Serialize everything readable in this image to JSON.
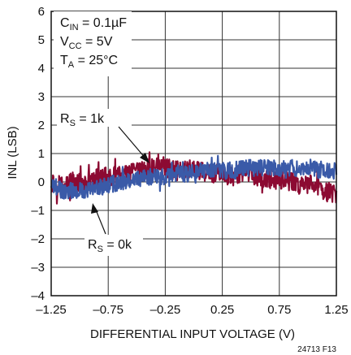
{
  "chart_data": {
    "type": "line",
    "title": "",
    "xlabel": "DIFFERENTIAL INPUT VOLTAGE (V)",
    "ylabel": "INL (LSB)",
    "xlim": [
      -1.25,
      1.25
    ],
    "ylim": [
      -4,
      6
    ],
    "x_ticks": [
      -1.25,
      -0.75,
      -0.25,
      0.25,
      0.75,
      1.25
    ],
    "x_tick_labels": [
      "–1.25",
      "–0.75",
      "–0.25",
      "0.25",
      "0.75",
      "1.25"
    ],
    "y_ticks": [
      -4,
      -3,
      -2,
      -1,
      0,
      1,
      2,
      3,
      4,
      5,
      6
    ],
    "y_tick_labels": [
      "–4",
      "–3",
      "–2",
      "–1",
      "0",
      "1",
      "2",
      "3",
      "4",
      "5",
      "6"
    ],
    "grid": true,
    "conditions": {
      "cin": {
        "main": "C",
        "sub": "IN",
        "rest": " = 0.1µF"
      },
      "vcc": {
        "main": "V",
        "sub": "CC",
        "rest": " = 5V"
      },
      "ta": {
        "main": "T",
        "sub": "A",
        "rest": " = 25°C"
      }
    },
    "annotations": [
      {
        "main": "R",
        "sub": "S",
        "rest": " = 1k",
        "points_to_series": "rs_1k"
      },
      {
        "main": "R",
        "sub": "S",
        "rest": " = 0k",
        "points_to_series": "rs_0k"
      }
    ],
    "figure_id": "24713 F13",
    "colors": {
      "rs_1k": "#8c0a32",
      "rs_0k": "#3a5aa8"
    },
    "series": [
      {
        "id": "rs_1k",
        "x": [
          -1.25,
          -1.15,
          -1.05,
          -0.95,
          -0.85,
          -0.75,
          -0.65,
          -0.55,
          -0.45,
          -0.35,
          -0.3,
          -0.25,
          -0.15,
          -0.05,
          0.05,
          0.15,
          0.25,
          0.35,
          0.45,
          0.55,
          0.65,
          0.75,
          0.85,
          0.95,
          1.05,
          1.15,
          1.25
        ],
        "y": [
          0.0,
          -0.1,
          0.0,
          -0.1,
          0.1,
          0.2,
          0.2,
          0.3,
          0.4,
          0.5,
          0.7,
          0.5,
          0.4,
          0.5,
          0.4,
          0.3,
          0.3,
          0.2,
          0.3,
          0.2,
          0.1,
          0.1,
          0.0,
          -0.1,
          -0.1,
          -0.3,
          -0.5
        ],
        "noise": 0.35
      },
      {
        "id": "rs_0k",
        "x": [
          -1.25,
          -1.15,
          -1.05,
          -0.95,
          -0.85,
          -0.75,
          -0.65,
          -0.55,
          -0.45,
          -0.35,
          -0.25,
          -0.15,
          -0.05,
          0.05,
          0.15,
          0.25,
          0.35,
          0.45,
          0.55,
          0.65,
          0.75,
          0.85,
          0.95,
          1.05,
          1.15,
          1.25
        ],
        "y": [
          -0.1,
          -0.3,
          -0.3,
          -0.3,
          -0.2,
          -0.1,
          0.0,
          0.1,
          0.1,
          0.2,
          0.2,
          0.3,
          0.3,
          0.4,
          0.4,
          0.4,
          0.4,
          0.5,
          0.5,
          0.5,
          0.5,
          0.5,
          0.5,
          0.5,
          0.4,
          0.4
        ],
        "noise": 0.3
      }
    ]
  }
}
